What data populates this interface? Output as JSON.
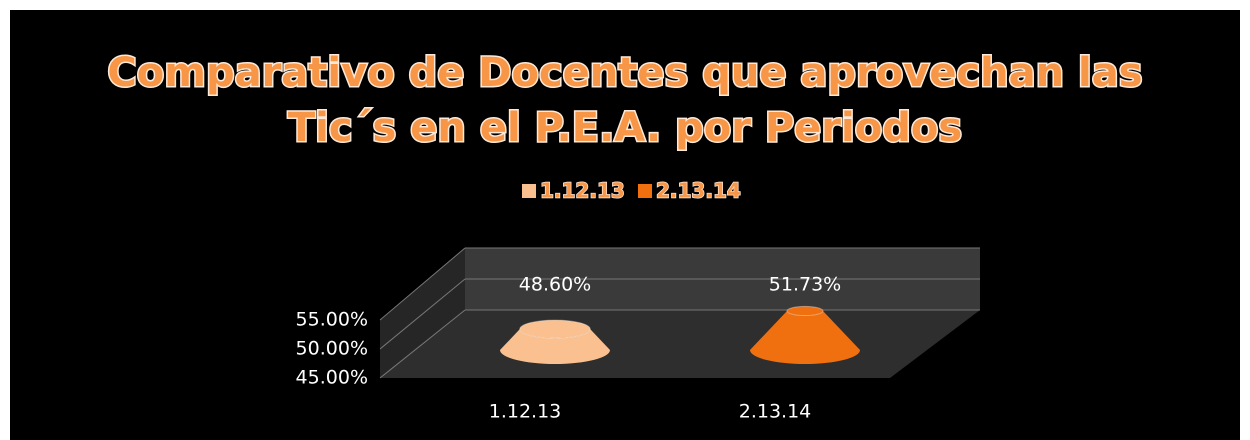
{
  "chart_data": {
    "type": "cone",
    "title_lines": [
      "Comparativo de Docentes que aprovechan las",
      "Tic´s en el P.E.A. por Periodos"
    ],
    "categories": [
      "1.12.13",
      "2.13.14"
    ],
    "values": [
      48.6,
      51.73
    ],
    "value_labels": [
      "48.60%",
      "51.73%"
    ],
    "colors": [
      "#fac090",
      "#f07010"
    ],
    "ylim": [
      45,
      55
    ],
    "yticks": [
      {
        "value": 45,
        "label": "45.00%"
      },
      {
        "value": 50,
        "label": "50.00%"
      },
      {
        "value": 55,
        "label": "55.00%"
      }
    ],
    "grid": true,
    "legend": "top"
  }
}
